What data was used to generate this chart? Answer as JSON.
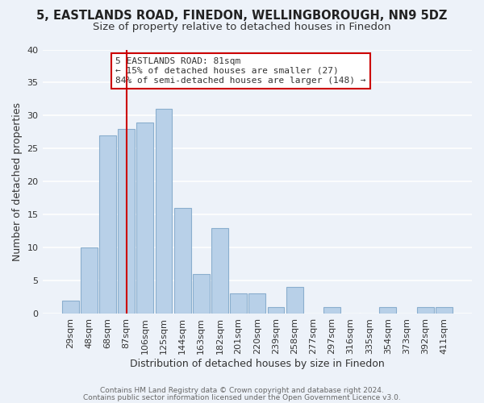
{
  "title": "5, EASTLANDS ROAD, FINEDON, WELLINGBOROUGH, NN9 5DZ",
  "subtitle": "Size of property relative to detached houses in Finedon",
  "xlabel": "Distribution of detached houses by size in Finedon",
  "ylabel": "Number of detached properties",
  "bar_labels": [
    "29sqm",
    "48sqm",
    "68sqm",
    "87sqm",
    "106sqm",
    "125sqm",
    "144sqm",
    "163sqm",
    "182sqm",
    "201sqm",
    "220sqm",
    "239sqm",
    "258sqm",
    "277sqm",
    "297sqm",
    "316sqm",
    "335sqm",
    "354sqm",
    "373sqm",
    "392sqm",
    "411sqm"
  ],
  "bar_values": [
    2,
    10,
    27,
    28,
    29,
    31,
    16,
    6,
    13,
    3,
    3,
    1,
    4,
    0,
    1,
    0,
    0,
    1,
    0,
    1,
    1
  ],
  "bar_color": "#b8d0e8",
  "bar_edge_color": "#8aaece",
  "ylim": [
    0,
    40
  ],
  "yticks": [
    0,
    5,
    10,
    15,
    20,
    25,
    30,
    35,
    40
  ],
  "vline_x": 3,
  "vline_color": "#cc0000",
  "annotation_title": "5 EASTLANDS ROAD: 81sqm",
  "annotation_line1": "← 15% of detached houses are smaller (27)",
  "annotation_line2": "84% of semi-detached houses are larger (148) →",
  "annotation_box_color": "#ffffff",
  "annotation_box_edge": "#cc0000",
  "footer1": "Contains HM Land Registry data © Crown copyright and database right 2024.",
  "footer2": "Contains public sector information licensed under the Open Government Licence v3.0.",
  "bg_color": "#edf2f9",
  "grid_color": "#ffffff",
  "title_fontsize": 10.5,
  "subtitle_fontsize": 9.5,
  "axis_label_fontsize": 9,
  "tick_fontsize": 8,
  "footer_fontsize": 6.5
}
